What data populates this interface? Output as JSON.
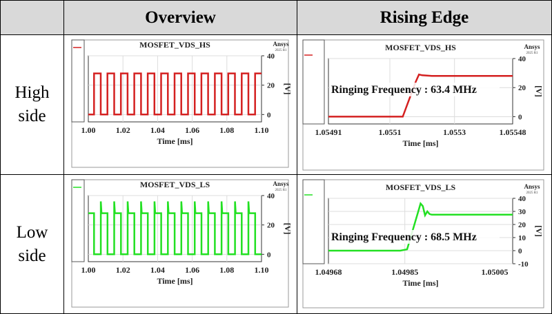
{
  "headers": {
    "corner": "",
    "col1": "Overview",
    "col2": "Rising Edge"
  },
  "rows": [
    {
      "label_line1": "High",
      "label_line2": "side"
    },
    {
      "label_line1": "Low",
      "label_line2": "side"
    }
  ],
  "logo": {
    "brand": "Ansys",
    "version": "2025 R1"
  },
  "colors": {
    "hs": "#d42020",
    "ls": "#22e022",
    "header_bg": "#d9d9d9"
  },
  "chart_data": [
    {
      "id": "hs-overview",
      "type": "line",
      "title": "MOSFET_VDS_HS",
      "xlabel": "Time [ms]",
      "ylabel": "[V]",
      "xlim": [
        1.0,
        1.1
      ],
      "ylim": [
        -5,
        40
      ],
      "xticks": [
        "1.00",
        "1.02",
        "1.04",
        "1.06",
        "1.08",
        "1.10"
      ],
      "yticks": [
        "0",
        "20",
        "40"
      ],
      "color": "#d42020",
      "grid": true,
      "waveform": {
        "period": 0.00775,
        "first_rise": 1.0033,
        "duty": 0.5,
        "high": 28,
        "low": 0
      }
    },
    {
      "id": "hs-rising",
      "type": "line",
      "title": "MOSFET_VDS_HS",
      "xlabel": "Time [ms]",
      "ylabel": "[V]",
      "xlim": [
        1.05491,
        1.05548
      ],
      "ylim": [
        -5,
        40
      ],
      "xticks": [
        "1.05491",
        "1.0551",
        "1.0553",
        "1.05548"
      ],
      "yticks": [
        "0",
        "20",
        "40"
      ],
      "color": "#d42020",
      "grid": true,
      "annotation": "Ringing Frequency : 63.4 MHz",
      "points": [
        [
          1.05491,
          0
        ],
        [
          1.05514,
          0
        ],
        [
          1.05518,
          24
        ],
        [
          1.05519,
          29
        ],
        [
          1.0552,
          28.5
        ],
        [
          1.05523,
          28
        ],
        [
          1.05548,
          28
        ]
      ]
    },
    {
      "id": "ls-overview",
      "type": "line",
      "title": "MOSFET_VDS_LS",
      "xlabel": "Time [ms]",
      "ylabel": "[V]",
      "xlim": [
        1.0,
        1.1
      ],
      "ylim": [
        -5,
        40
      ],
      "xticks": [
        "1.00",
        "1.02",
        "1.04",
        "1.06",
        "1.08",
        "1.10"
      ],
      "yticks": [
        "0",
        "20",
        "40"
      ],
      "color": "#22e022",
      "grid": true,
      "waveform": {
        "period": 0.00775,
        "first_rise": 1.0072,
        "duty": 0.5,
        "high": 28,
        "low": 0,
        "overshoot": 36,
        "start_high": true
      }
    },
    {
      "id": "ls-rising",
      "type": "line",
      "title": "MOSFET_VDS_LS",
      "xlabel": "Time [ms]",
      "ylabel": "[V]",
      "xlim": [
        1.04968,
        1.05009
      ],
      "ylim": [
        -10,
        40
      ],
      "xticks": [
        "1.04968",
        "1.04985",
        "1.05005"
      ],
      "yticks": [
        "-10",
        "0",
        "10",
        "20",
        "30",
        "40"
      ],
      "color": "#22e022",
      "grid": true,
      "annotation": "Ringing Frequency : 68.5 MHz",
      "points": [
        [
          1.04968,
          0
        ],
        [
          1.04984,
          0
        ],
        [
          1.049855,
          1
        ],
        [
          1.04988,
          30
        ],
        [
          1.049885,
          36
        ],
        [
          1.04989,
          34
        ],
        [
          1.049895,
          27
        ],
        [
          1.0499,
          30
        ],
        [
          1.049905,
          28
        ],
        [
          1.04991,
          27.5
        ],
        [
          1.04993,
          27.5
        ],
        [
          1.05009,
          27.5
        ]
      ]
    }
  ]
}
